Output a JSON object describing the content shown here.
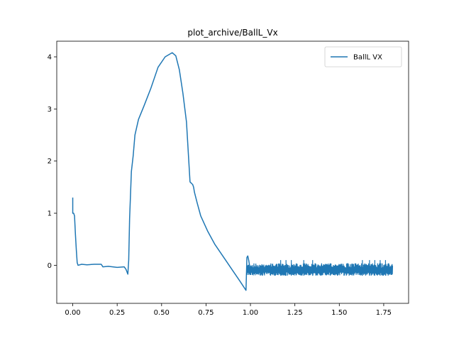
{
  "chart_data": {
    "type": "line",
    "title": "plot_archive/BallL_Vx",
    "xlabel": "",
    "ylabel": "",
    "xlim": [
      -0.09,
      1.89
    ],
    "ylim": [
      -0.73,
      4.3
    ],
    "xticks": [
      0.0,
      0.25,
      0.5,
      0.75,
      1.0,
      1.25,
      1.5,
      1.75
    ],
    "xtick_labels": [
      "0.00",
      "0.25",
      "0.50",
      "0.75",
      "1.00",
      "1.25",
      "1.50",
      "1.75"
    ],
    "yticks": [
      0,
      1,
      2,
      3,
      4
    ],
    "ytick_labels": [
      "0",
      "1",
      "2",
      "3",
      "4"
    ],
    "grid": false,
    "legend_position": "top-right",
    "colors": {
      "series": "#1f77b4"
    },
    "series": [
      {
        "name": "BallL VX",
        "x": [
          0.0,
          0.0,
          0.005,
          0.01,
          0.015,
          0.02,
          0.025,
          0.03,
          0.05,
          0.08,
          0.12,
          0.16,
          0.17,
          0.2,
          0.25,
          0.29,
          0.3,
          0.31,
          0.315,
          0.32,
          0.33,
          0.34,
          0.35,
          0.37,
          0.4,
          0.44,
          0.48,
          0.52,
          0.56,
          0.58,
          0.6,
          0.62,
          0.64,
          0.66,
          0.675,
          0.68,
          0.685,
          0.7,
          0.72,
          0.74,
          0.76,
          0.8,
          0.86,
          0.9,
          0.94,
          0.975,
          0.98,
          0.985,
          0.99,
          0.995,
          1.0,
          1.05,
          1.1,
          1.15,
          1.2,
          1.25,
          1.3,
          1.35,
          1.4,
          1.45,
          1.5,
          1.55,
          1.6,
          1.65,
          1.7,
          1.75,
          1.8
        ],
        "y": [
          1.3,
          1.0,
          1.0,
          0.95,
          0.6,
          0.3,
          0.05,
          0.0,
          0.02,
          0.01,
          0.02,
          0.02,
          -0.03,
          -0.02,
          -0.04,
          -0.03,
          -0.08,
          -0.17,
          0.1,
          0.9,
          1.8,
          2.1,
          2.5,
          2.8,
          3.05,
          3.4,
          3.8,
          4.0,
          4.08,
          4.02,
          3.75,
          3.3,
          2.75,
          1.6,
          1.55,
          1.5,
          1.4,
          1.2,
          0.95,
          0.8,
          0.65,
          0.4,
          0.1,
          -0.1,
          -0.3,
          -0.48,
          0.15,
          0.18,
          0.1,
          0.0,
          -0.1,
          -0.08,
          -0.1,
          -0.09,
          -0.1,
          -0.07,
          -0.1,
          -0.08,
          -0.09,
          -0.08,
          -0.09,
          -0.08,
          -0.07,
          -0.06,
          -0.06,
          -0.07,
          -0.08
        ],
        "noise_band": {
          "x_range": [
            0.98,
            1.8
          ],
          "y_range": [
            -0.22,
            0.12
          ]
        }
      }
    ]
  }
}
